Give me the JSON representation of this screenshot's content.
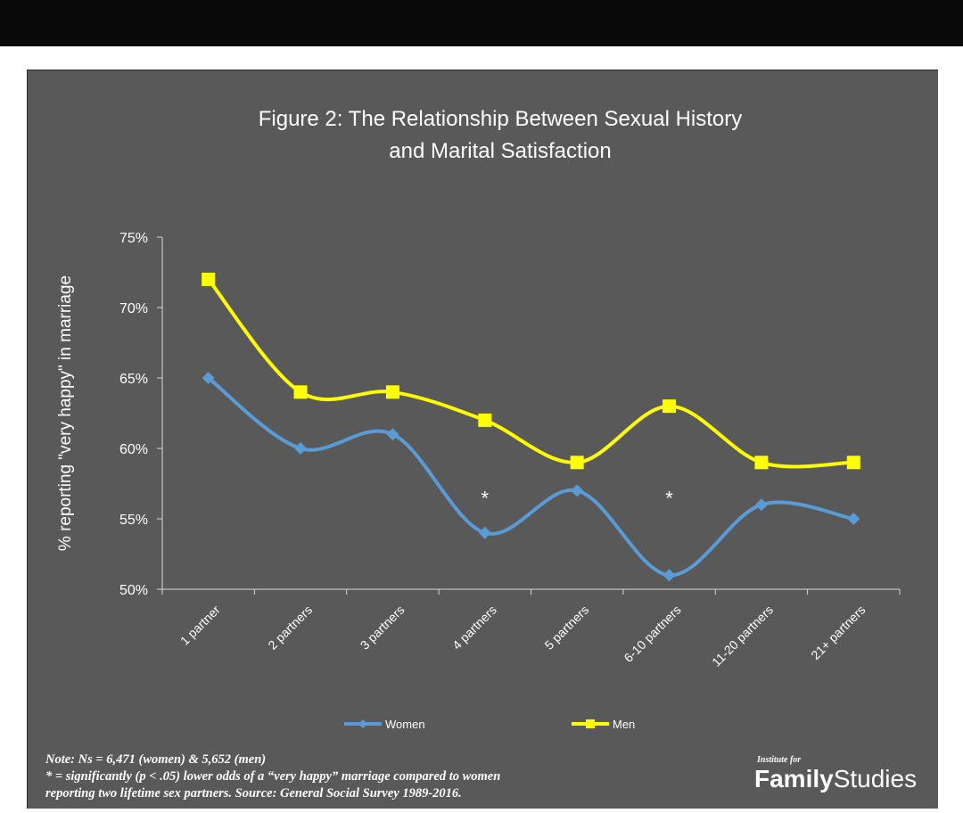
{
  "chart_data": {
    "type": "line",
    "title_lines": [
      "Figure  2: The Relationship Between Sexual History",
      "and Marital Satisfaction"
    ],
    "ylabel": "% reporting \"very happy\" in marriage",
    "xlabel": "",
    "ylim": [
      50,
      75
    ],
    "yticks": [
      50,
      55,
      60,
      65,
      70,
      75
    ],
    "ytick_labels": [
      "50%",
      "55%",
      "60%",
      "65%",
      "70%",
      "75%"
    ],
    "categories": [
      "1 partner",
      "2 partners",
      "3 partners",
      "4 partners",
      "5 partners",
      "6-10 partners",
      "11-20 partners",
      "21+ partners"
    ],
    "series": [
      {
        "name": "Women",
        "values": [
          65,
          60,
          61,
          54,
          57,
          51,
          56,
          55
        ],
        "color": "#5b9bd5",
        "marker": "diamond"
      },
      {
        "name": "Men",
        "values": [
          72,
          64,
          64,
          62,
          59,
          63,
          59,
          59
        ],
        "color": "#ffff00",
        "marker": "square"
      }
    ],
    "annotations": [
      {
        "text": "*",
        "category": "4 partners",
        "y": 56.6
      },
      {
        "text": "*",
        "category": "6-10 partners",
        "y": 56.6
      }
    ],
    "legend": {
      "position": "bottom",
      "entries": [
        "Women",
        "Men"
      ]
    },
    "grid": false
  },
  "note": {
    "lines": [
      "Note: Ns = 6,471 (women) & 5,652 (men)",
      "* = significantly (p < .05) lower odds of a “very happy” marriage compared to women",
      "reporting two lifetime sex partners.  Source: General Social Survey 1989-2016."
    ]
  },
  "logo": {
    "small": "Institute for",
    "bold": "Family",
    "regular": "Studies"
  },
  "colors": {
    "panel_background": "#595959",
    "top_bar": "#0a0a0a",
    "women": "#5b9bd5",
    "men": "#ffff00",
    "text": "#ffffff"
  }
}
